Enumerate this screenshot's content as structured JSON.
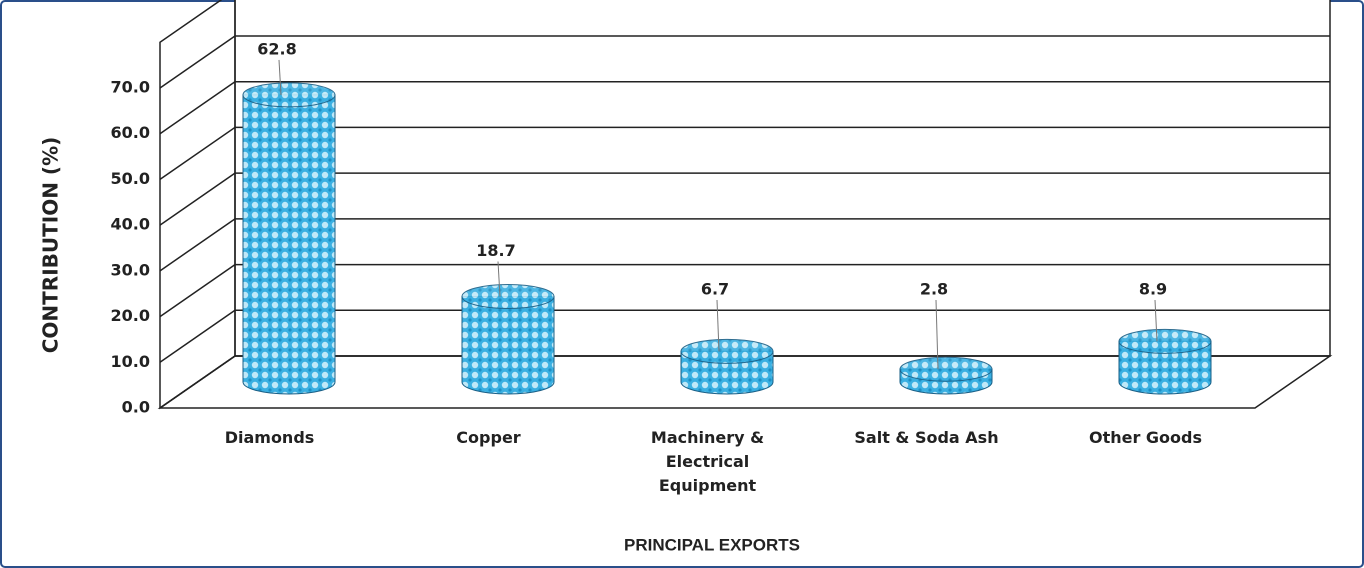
{
  "chart_data": {
    "type": "bar3d",
    "categories": [
      "Diamonds",
      "Copper",
      "Machinery & Electrical Equipment",
      "Salt & Soda Ash",
      "Other Goods"
    ],
    "values": [
      62.8,
      18.7,
      6.7,
      2.8,
      8.9
    ],
    "color": "#3ab0e2",
    "x_label": "PRINCIPAL EXPORTS",
    "y_label": "CONTRIBUTION (%)",
    "ylim": [
      0,
      80
    ],
    "yticks": [
      {
        "value": 0,
        "label": "0.0"
      },
      {
        "value": 10,
        "label": "10.0"
      },
      {
        "value": 20,
        "label": "20.0"
      },
      {
        "value": 30,
        "label": "30.0"
      },
      {
        "value": 40,
        "label": "40.0"
      },
      {
        "value": 50,
        "label": "50.0"
      },
      {
        "value": 60,
        "label": "60.0"
      },
      {
        "value": 70,
        "label": "70.0"
      }
    ],
    "grid": true
  }
}
